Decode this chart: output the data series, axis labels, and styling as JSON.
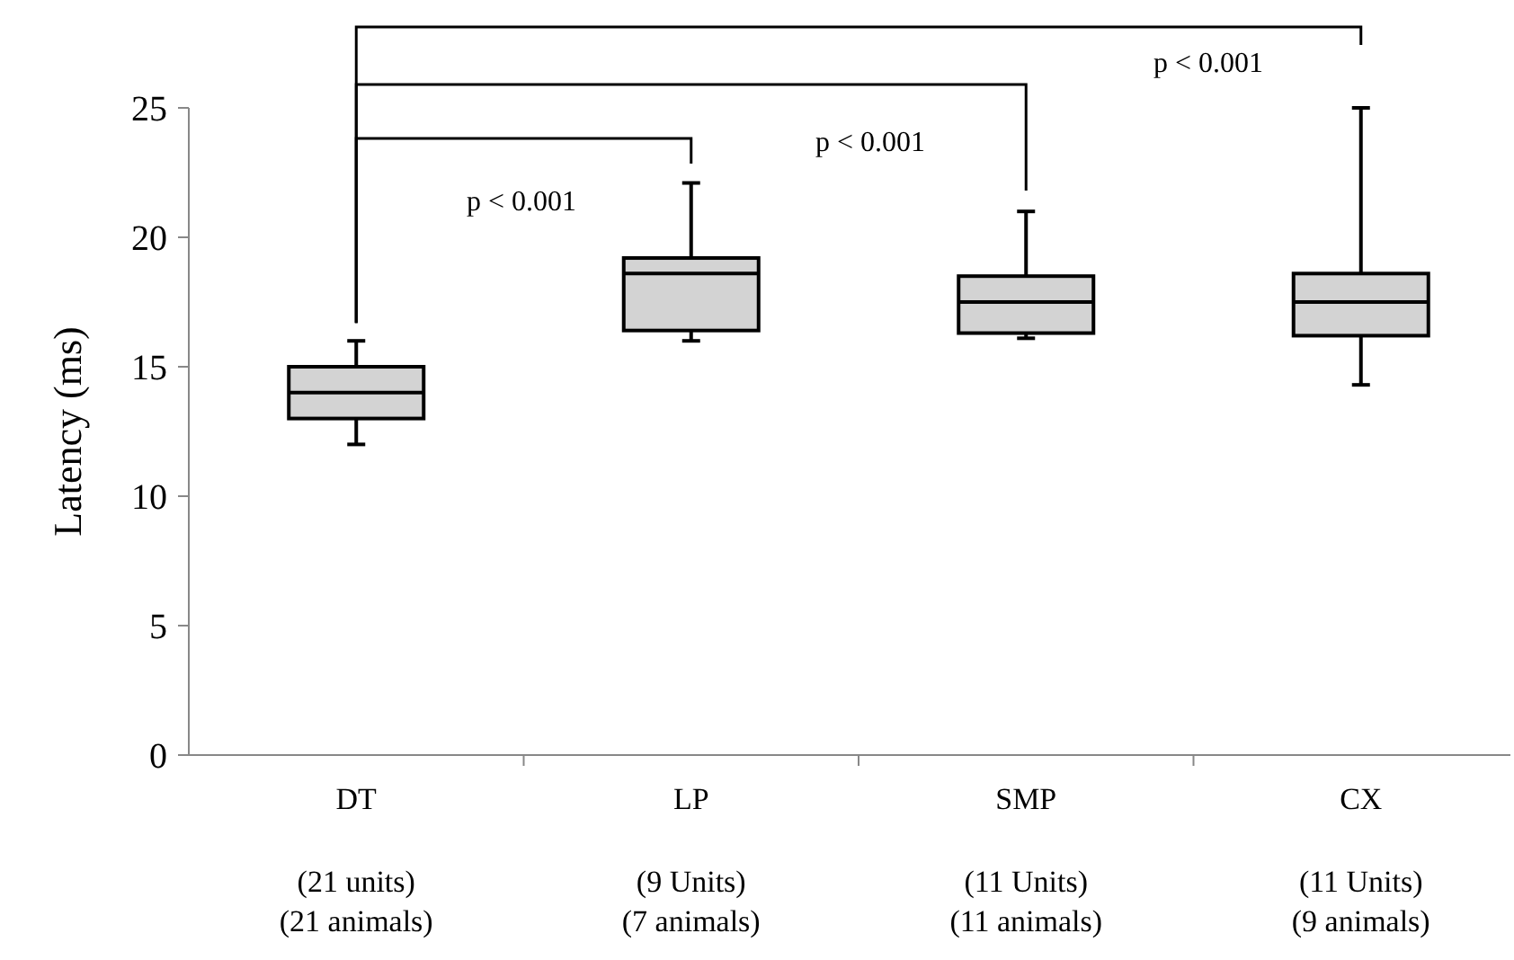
{
  "chart_data": {
    "type": "box",
    "ylabel": "Latency (ms)",
    "categories": [
      "DT\n(21 units)\n(21 animals)",
      "LP\n(9 Units)\n(7 animals)",
      "SMP\n(11 Units)\n(11 animals)",
      "CX\n(11 Units)\n(9 animals)"
    ],
    "boxes": [
      {
        "low": 12,
        "q1": 13,
        "median": 14,
        "q3": 15,
        "high": 16
      },
      {
        "low": 16,
        "q1": 16.4,
        "median": 18.6,
        "q3": 19.2,
        "high": 22.1
      },
      {
        "low": 16.1,
        "q1": 16.3,
        "median": 17.5,
        "q3": 18.5,
        "high": 21
      },
      {
        "low": 14.3,
        "q1": 16.2,
        "median": 17.5,
        "q3": 18.6,
        "high": 25
      }
    ],
    "color": "#d3d3d3",
    "ylim": [
      0,
      25
    ],
    "yticks": [
      0,
      5,
      10,
      15,
      20,
      25
    ],
    "grid": false,
    "annotations": [
      "p < 0.001",
      "p < 0.001",
      "p < 0.001"
    ]
  }
}
